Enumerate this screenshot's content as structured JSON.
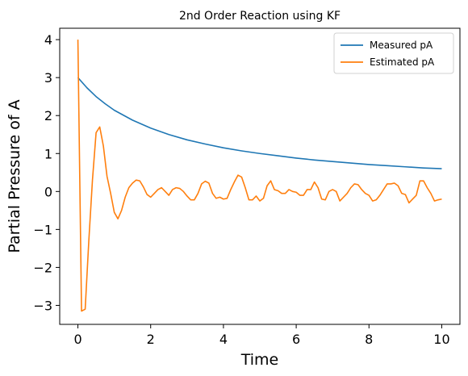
{
  "chart_data": {
    "type": "line",
    "title": "2nd Order Reaction using KF",
    "xlabel": "Time",
    "ylabel": "Partial Pressure of A",
    "xlim": [
      -0.5,
      10.5
    ],
    "ylim": [
      -3.5,
      4.3
    ],
    "xticks": [
      0,
      2,
      4,
      6,
      8,
      10
    ],
    "xtick_labels": [
      "0",
      "2",
      "4",
      "6",
      "8",
      "10"
    ],
    "yticks": [
      -3,
      -2,
      -1,
      0,
      1,
      2,
      3,
      4
    ],
    "ytick_labels": [
      "−3",
      "−2",
      "−1",
      "0",
      "1",
      "2",
      "3",
      "4"
    ],
    "grid": false,
    "legend_position": "top-right",
    "series": [
      {
        "name": "Measured pA",
        "color": "#1f77b4",
        "x": [
          0,
          0.25,
          0.5,
          0.75,
          1.0,
          1.5,
          2.0,
          2.5,
          3.0,
          3.5,
          4.0,
          4.5,
          5.0,
          5.5,
          6.0,
          6.5,
          7.0,
          7.5,
          8.0,
          8.5,
          9.0,
          9.5,
          10.0
        ],
        "y": [
          3.0,
          2.73,
          2.5,
          2.31,
          2.14,
          1.88,
          1.67,
          1.5,
          1.36,
          1.25,
          1.15,
          1.07,
          1.0,
          0.94,
          0.88,
          0.83,
          0.79,
          0.75,
          0.71,
          0.68,
          0.65,
          0.62,
          0.6
        ]
      },
      {
        "name": "Estimated pA",
        "color": "#ff7f0e",
        "x": [
          0,
          0.1,
          0.2,
          0.3,
          0.4,
          0.5,
          0.6,
          0.7,
          0.8,
          0.9,
          1.0,
          1.1,
          1.2,
          1.3,
          1.4,
          1.5,
          1.6,
          1.7,
          1.8,
          1.9,
          2.0,
          2.1,
          2.2,
          2.3,
          2.4,
          2.5,
          2.6,
          2.7,
          2.8,
          2.9,
          3.0,
          3.1,
          3.2,
          3.3,
          3.4,
          3.5,
          3.6,
          3.7,
          3.8,
          3.9,
          4.0,
          4.1,
          4.2,
          4.3,
          4.4,
          4.5,
          4.6,
          4.7,
          4.8,
          4.9,
          5.0,
          5.1,
          5.2,
          5.3,
          5.4,
          5.5,
          5.6,
          5.7,
          5.8,
          5.9,
          6.0,
          6.1,
          6.2,
          6.3,
          6.4,
          6.5,
          6.6,
          6.7,
          6.8,
          6.9,
          7.0,
          7.1,
          7.2,
          7.3,
          7.4,
          7.5,
          7.6,
          7.7,
          7.8,
          7.9,
          8.0,
          8.1,
          8.2,
          8.3,
          8.4,
          8.5,
          8.6,
          8.7,
          8.8,
          8.9,
          9.0,
          9.1,
          9.2,
          9.3,
          9.4,
          9.5,
          9.6,
          9.7,
          9.8,
          9.9,
          10.0
        ],
        "y": [
          4.0,
          -3.15,
          -3.1,
          -1.3,
          0.3,
          1.55,
          1.7,
          1.2,
          0.4,
          -0.05,
          -0.55,
          -0.72,
          -0.5,
          -0.15,
          0.1,
          0.22,
          0.3,
          0.28,
          0.12,
          -0.08,
          -0.15,
          -0.05,
          0.05,
          0.1,
          0.0,
          -0.1,
          0.05,
          0.1,
          0.08,
          0.0,
          -0.12,
          -0.22,
          -0.22,
          -0.05,
          0.2,
          0.27,
          0.22,
          -0.05,
          -0.18,
          -0.15,
          -0.2,
          -0.18,
          0.05,
          0.25,
          0.43,
          0.38,
          0.1,
          -0.22,
          -0.22,
          -0.12,
          -0.25,
          -0.18,
          0.15,
          0.28,
          0.05,
          0.02,
          -0.05,
          -0.05,
          0.05,
          0.0,
          -0.02,
          -0.1,
          -0.1,
          0.05,
          0.05,
          0.25,
          0.1,
          -0.2,
          -0.22,
          0.0,
          0.05,
          0.0,
          -0.25,
          -0.15,
          -0.05,
          0.1,
          0.2,
          0.18,
          0.05,
          -0.05,
          -0.1,
          -0.25,
          -0.22,
          -0.1,
          0.05,
          0.2,
          0.2,
          0.22,
          0.15,
          -0.05,
          -0.08,
          -0.3,
          -0.2,
          -0.1,
          0.28,
          0.28,
          0.1,
          -0.05,
          -0.25,
          -0.22,
          -0.2
        ]
      }
    ]
  }
}
